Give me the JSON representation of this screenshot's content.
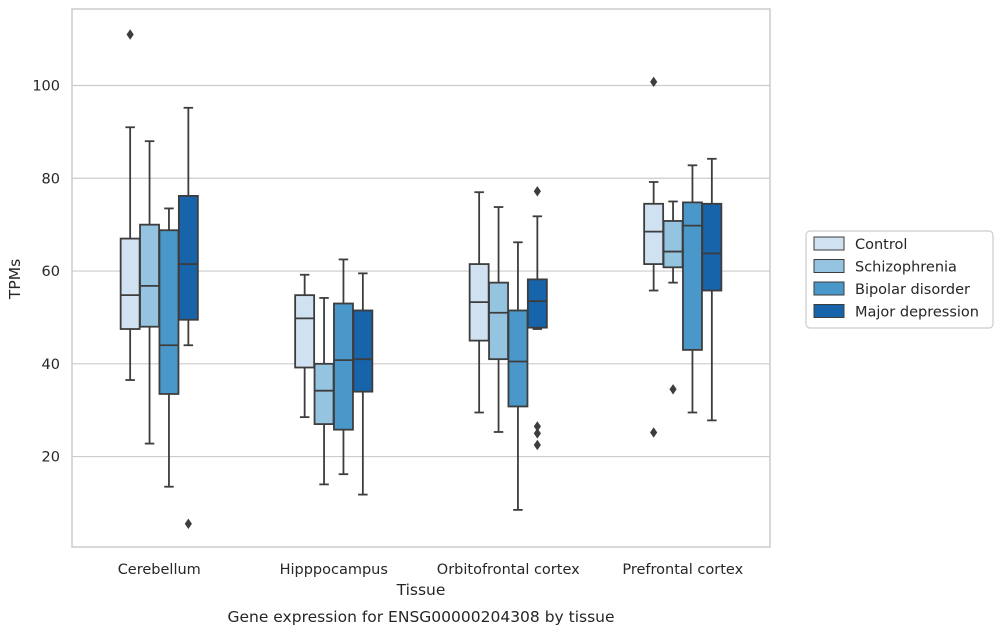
{
  "chart_data": {
    "type": "box",
    "title": "",
    "caption": "Gene expression for ENSG00000204308 by tissue",
    "xlabel": "Tissue",
    "ylabel": "TPMs",
    "ylim": [
      0.5,
      116.5
    ],
    "yticks": [
      20,
      40,
      60,
      80,
      100
    ],
    "grid": "horizontal",
    "legend_position": "right",
    "categories": [
      "Cerebellum",
      "Hipppocampus",
      "Orbitofrontal cortex",
      "Prefrontal cortex"
    ],
    "series": [
      {
        "name": "Control",
        "color": "#d0e1f2",
        "boxes": [
          {
            "whisker_low": 36.5,
            "q1": 47.5,
            "median": 54.8,
            "q3": 67,
            "whisker_high": 91,
            "outliers": [
              111
            ]
          },
          {
            "whisker_low": 28.5,
            "q1": 39.2,
            "median": 49.8,
            "q3": 54.8,
            "whisker_high": 59.2,
            "outliers": []
          },
          {
            "whisker_low": 29.5,
            "q1": 45,
            "median": 53.3,
            "q3": 61.5,
            "whisker_high": 77,
            "outliers": []
          },
          {
            "whisker_low": 55.8,
            "q1": 61.5,
            "median": 68.5,
            "q3": 74.5,
            "whisker_high": 79.2,
            "outliers": [
              100.8,
              25.2
            ]
          }
        ]
      },
      {
        "name": "Schizophrenia",
        "color": "#94c4df",
        "boxes": [
          {
            "whisker_low": 22.8,
            "q1": 48,
            "median": 56.8,
            "q3": 70,
            "whisker_high": 88,
            "outliers": []
          },
          {
            "whisker_low": 14,
            "q1": 27,
            "median": 34.2,
            "q3": 40,
            "whisker_high": 54.2,
            "outliers": []
          },
          {
            "whisker_low": 25.3,
            "q1": 41,
            "median": 51,
            "q3": 57.5,
            "whisker_high": 73.8,
            "outliers": []
          },
          {
            "whisker_low": 57.5,
            "q1": 60.8,
            "median": 64.2,
            "q3": 70.8,
            "whisker_high": 75,
            "outliers": [
              34.5
            ]
          }
        ]
      },
      {
        "name": "Bipolar disorder",
        "color": "#4a98c9",
        "boxes": [
          {
            "whisker_low": 13.5,
            "q1": 33.5,
            "median": 44,
            "q3": 68.8,
            "whisker_high": 73.5,
            "outliers": []
          },
          {
            "whisker_low": 16.2,
            "q1": 25.8,
            "median": 40.8,
            "q3": 53,
            "whisker_high": 62.5,
            "outliers": []
          },
          {
            "whisker_low": 8.5,
            "q1": 30.8,
            "median": 40.5,
            "q3": 51.5,
            "whisker_high": 66.2,
            "outliers": []
          },
          {
            "whisker_low": 29.5,
            "q1": 43,
            "median": 69.8,
            "q3": 74.8,
            "whisker_high": 82.8,
            "outliers": []
          }
        ]
      },
      {
        "name": "Major depression",
        "color": "#1764ab",
        "boxes": [
          {
            "whisker_low": 44,
            "q1": 49.5,
            "median": 61.5,
            "q3": 76.2,
            "whisker_high": 95.2,
            "outliers": [
              5.5
            ]
          },
          {
            "whisker_low": 11.8,
            "q1": 34,
            "median": 41,
            "q3": 51.5,
            "whisker_high": 59.5,
            "outliers": []
          },
          {
            "whisker_low": 47.5,
            "q1": 47.8,
            "median": 53.5,
            "q3": 58.2,
            "whisker_high": 71.8,
            "outliers": [
              77.2,
              26.5,
              25,
              22.5
            ]
          },
          {
            "whisker_low": 27.8,
            "q1": 55.8,
            "median": 63.8,
            "q3": 74.5,
            "whisker_high": 84.2,
            "outliers": []
          }
        ]
      }
    ]
  }
}
